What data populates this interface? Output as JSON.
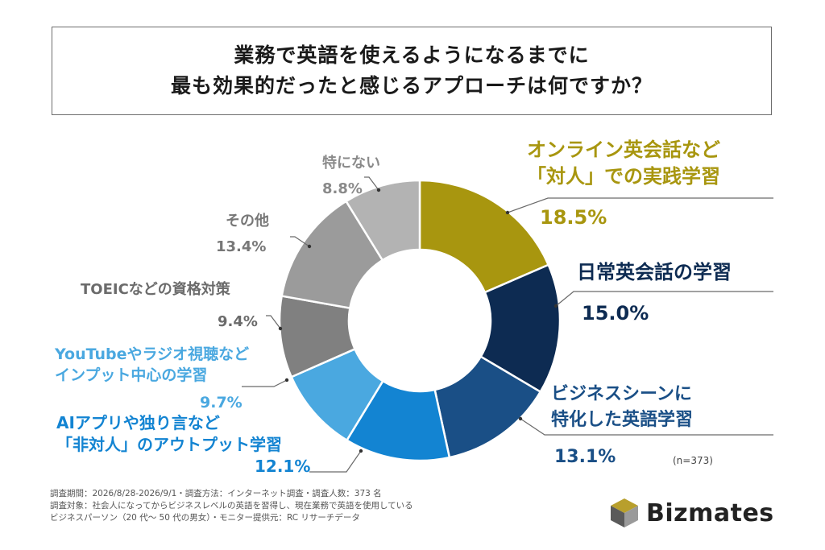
{
  "title_lines": [
    "業務で英語を使えるようになるまでに",
    "最も効果的だったと感じるアプローチは何ですか？"
  ],
  "chart_data": {
    "type": "pie",
    "variant": "donut",
    "slices": [
      {
        "label": "オンライン英会話など「対人」での実践学習",
        "label_lines": [
          "オンライン英会話など",
          "「対人」での実践学習"
        ],
        "value": 18.5,
        "value_text": "18.5%",
        "color": "#a8960f"
      },
      {
        "label": "日常英会話の学習",
        "label_lines": [
          "日常英会話の学習"
        ],
        "value": 15.0,
        "value_text": "15.0%",
        "color": "#0d2b52"
      },
      {
        "label": "ビジネスシーンに特化した英語学習",
        "label_lines": [
          "ビジネスシーンに",
          "特化した英語学習"
        ],
        "value": 13.1,
        "value_text": "13.1%",
        "color": "#1a4f86"
      },
      {
        "label": "AIアプリや独り言など「非対人」のアウトプット学習",
        "label_lines": [
          "AIアプリや独り言など",
          "「非対人」のアウトプット学習"
        ],
        "value": 12.1,
        "value_text": "12.1%",
        "color": "#1384d2"
      },
      {
        "label": "YouTubeやラジオ視聴などインプット中心の学習",
        "label_lines": [
          "YouTubeやラジオ視聴など",
          "インプット中心の学習"
        ],
        "value": 9.7,
        "value_text": "9.7%",
        "color": "#4aa8e0"
      },
      {
        "label": "TOEICなどの資格対策",
        "label_lines": [
          "TOEICなどの資格対策"
        ],
        "value": 9.4,
        "value_text": "9.4%",
        "color": "#808080"
      },
      {
        "label": "その他",
        "label_lines": [
          "その他"
        ],
        "value": 13.4,
        "value_text": "13.4%",
        "color": "#9b9b9b"
      },
      {
        "label": "特にない",
        "label_lines": [
          "特にない"
        ],
        "value": 8.8,
        "value_text": "8.8%",
        "color": "#b3b3b3"
      }
    ],
    "start": "12 o'clock",
    "direction": "clockwise",
    "legend": "none"
  },
  "sample_note": "(n=373)",
  "footnotes": [
    "調査期間：2026/8/28-2026/9/1・調査方法：インターネット調査・調査人数：373 名",
    "調査対象：社会人になってからビジネスレベルの英語を習得し、現在業務で英語を使用している",
    "ビジネスパーソン（20 代～ 50 代の男女）・モニター提供元：RC リサーチデータ"
  ],
  "brand": {
    "name": "Bizmates",
    "icon": "cube-logo-icon"
  }
}
